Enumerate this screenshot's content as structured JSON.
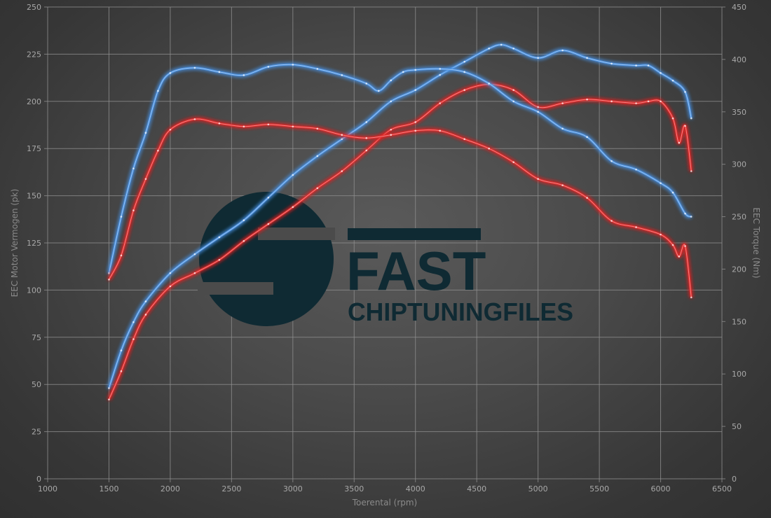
{
  "chart_data": {
    "type": "line",
    "xlabel": "Toerental (rpm)",
    "ylabel": "EEC Motor Vermogen (pk)",
    "y2label": "EEC Torque (Nm)",
    "xlim": [
      1000,
      6500
    ],
    "ylim": [
      0,
      250
    ],
    "y2lim": [
      0,
      450
    ],
    "xticks": [
      1000,
      1500,
      2000,
      2500,
      3000,
      3500,
      4000,
      4500,
      5000,
      5500,
      6000,
      6500
    ],
    "yticks": [
      0,
      25,
      50,
      75,
      100,
      125,
      150,
      175,
      200,
      225,
      250
    ],
    "y2ticks": [
      0,
      50,
      100,
      150,
      200,
      250,
      300,
      350,
      400,
      450
    ],
    "grid": true,
    "series": [
      {
        "axis": "left",
        "color": "#4a90e0",
        "x": [
          1500,
          1600,
          1700,
          1800,
          2000,
          2200,
          2400,
          2600,
          2800,
          3000,
          3200,
          3400,
          3600,
          3800,
          4000,
          4200,
          4400,
          4600,
          4700,
          4800,
          5000,
          5200,
          5400,
          5600,
          5800,
          5900,
          6000,
          6100,
          6200,
          6250
        ],
        "y": [
          48,
          68,
          83,
          94,
          109,
          119,
          128,
          137,
          149,
          161,
          171,
          180,
          189,
          200,
          206,
          214,
          221,
          228,
          230,
          228,
          223,
          227,
          223,
          220,
          219,
          219,
          215,
          211,
          205,
          191
        ]
      },
      {
        "axis": "left",
        "color": "#e02828",
        "x": [
          1500,
          1600,
          1700,
          1800,
          2000,
          2200,
          2400,
          2600,
          2800,
          3000,
          3200,
          3400,
          3600,
          3800,
          4000,
          4200,
          4400,
          4600,
          4800,
          5000,
          5200,
          5400,
          5600,
          5800,
          5900,
          6000,
          6100,
          6150,
          6200,
          6250
        ],
        "y": [
          42,
          57,
          74,
          87,
          102,
          109,
          116,
          126,
          135,
          144,
          154,
          163,
          174,
          185,
          189,
          199,
          206,
          209,
          206,
          197,
          199,
          201,
          200,
          199,
          200,
          200,
          191,
          178,
          187,
          163
        ]
      },
      {
        "axis": "right",
        "color": "#4a90e0",
        "x": [
          1500,
          1600,
          1700,
          1800,
          1900,
          2000,
          2200,
          2400,
          2600,
          2800,
          3000,
          3200,
          3400,
          3600,
          3700,
          3800,
          3900,
          4000,
          4200,
          4400,
          4600,
          4800,
          5000,
          5200,
          5400,
          5600,
          5800,
          6000,
          6100,
          6200,
          6250
        ],
        "y": [
          196,
          250,
          296,
          330,
          370,
          387,
          392,
          388,
          385,
          393,
          395,
          391,
          385,
          377,
          370,
          380,
          388,
          390,
          391,
          388,
          377,
          360,
          350,
          334,
          326,
          303,
          295,
          282,
          273,
          253,
          250
        ]
      },
      {
        "axis": "right",
        "color": "#e02828",
        "x": [
          1500,
          1600,
          1700,
          1800,
          1900,
          2000,
          2200,
          2400,
          2600,
          2800,
          3000,
          3200,
          3400,
          3600,
          3800,
          4000,
          4200,
          4400,
          4600,
          4800,
          5000,
          5200,
          5400,
          5600,
          5800,
          6000,
          6100,
          6150,
          6200,
          6250
        ],
        "y": [
          190,
          213,
          256,
          286,
          313,
          333,
          343,
          339,
          336,
          338,
          336,
          334,
          328,
          325,
          328,
          332,
          332,
          324,
          315,
          302,
          286,
          280,
          268,
          246,
          240,
          233,
          223,
          212,
          222,
          173
        ]
      }
    ]
  },
  "logo": {
    "line1": "FAST",
    "line2": "CHIPTUNINGFILES"
  }
}
